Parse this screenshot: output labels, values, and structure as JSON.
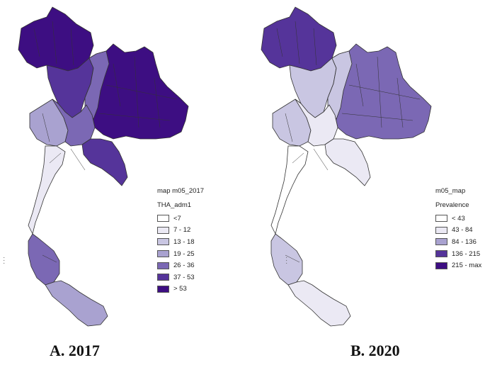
{
  "colors": [
    "#ffffff",
    "#ebe9f4",
    "#c9c6e2",
    "#a9a2d0",
    "#7b68b4",
    "#55349a",
    "#3d0e82"
  ],
  "maps": [
    {
      "id": "a",
      "legend_title": "map m05_2017",
      "legend_subtitle": "THA_adm1",
      "caption": "A.  2017",
      "classes": [
        "<7",
        "7 - 12",
        "13 - 18",
        "19 - 25",
        "26 - 36",
        "37 - 53",
        "> 53"
      ],
      "class_colors": [
        0,
        1,
        2,
        3,
        4,
        5,
        6
      ],
      "regions": {
        "north": 6,
        "north_lower": 5,
        "northeast": 6,
        "northeast_west": 4,
        "central": 4,
        "east": 5,
        "west": 3,
        "south_north": 1,
        "south_mid": 4,
        "south_far": 3
      }
    },
    {
      "id": "b",
      "legend_title": "m05_map",
      "legend_subtitle": "Prevalence",
      "caption": "B. 2020",
      "classes": [
        "< 43",
        "43 - 84",
        "84 - 136",
        "136 - 215",
        "215 - max"
      ],
      "class_colors": [
        0,
        1,
        3,
        5,
        6
      ],
      "regions": {
        "north": 5,
        "north_lower": 2,
        "northeast": 4,
        "northeast_west": 2,
        "central": 1,
        "east": 1,
        "west": 2,
        "south_north": 0,
        "south_mid": 2,
        "south_far": 1
      }
    }
  ]
}
